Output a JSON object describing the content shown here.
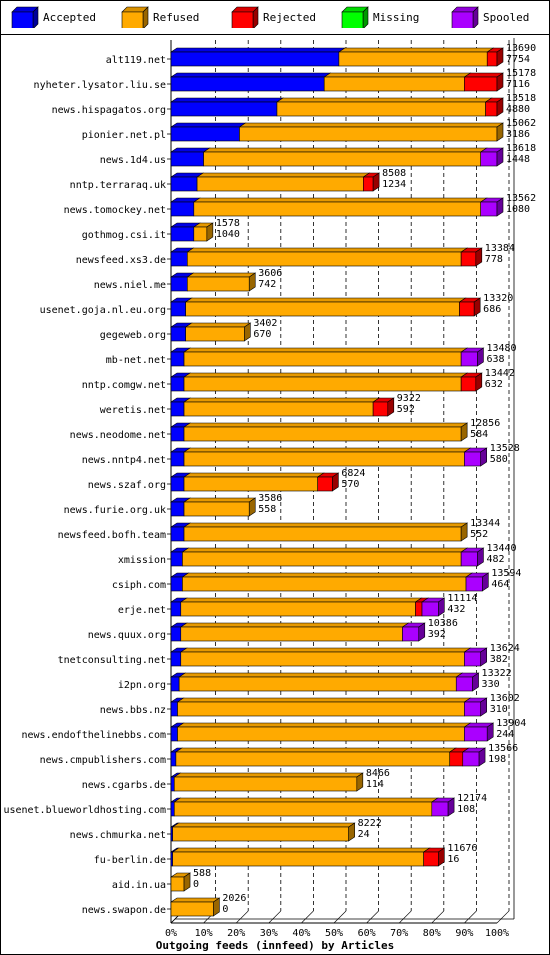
{
  "legend": [
    {
      "label": "Accepted",
      "color": "#0000ff"
    },
    {
      "label": "Refused",
      "color": "#ffaa00"
    },
    {
      "label": "Rejected",
      "color": "#ff0000"
    },
    {
      "label": "Missing",
      "color": "#00ff00"
    },
    {
      "label": "Spooled",
      "color": "#aa00ff"
    }
  ],
  "chart_data": {
    "type": "bar",
    "orientation": "horizontal",
    "stacked": true,
    "xlabel": "Outgoing feeds (innfeed) by Articles",
    "xlim": [
      0,
      100
    ],
    "x_ticks": [
      "0%",
      "10%",
      "20%",
      "30%",
      "40%",
      "50%",
      "60%",
      "70%",
      "80%",
      "90%",
      "100%"
    ],
    "grid": "vertical dashed",
    "legend_position": "top",
    "series_colors": {
      "Accepted": "#0000ff",
      "Refused": "#ffaa00",
      "Rejected": "#ff0000",
      "Missing": "#00ff00",
      "Spooled": "#aa00ff"
    },
    "rows": [
      {
        "name": "alt119.net",
        "total": "13690",
        "accepted": "7754",
        "pct": {
          "Accepted": 51.5,
          "Refused": 45.5,
          "Rejected": 3.0,
          "Missing": 0,
          "Spooled": 0
        }
      },
      {
        "name": "nyheter.lysator.liu.se",
        "total": "15178",
        "accepted": "7116",
        "pct": {
          "Accepted": 47.0,
          "Refused": 43.0,
          "Rejected": 10.0,
          "Missing": 0,
          "Spooled": 0
        }
      },
      {
        "name": "news.hispagatos.org",
        "total": "13518",
        "accepted": "4880",
        "pct": {
          "Accepted": 32.5,
          "Refused": 64.0,
          "Rejected": 3.5,
          "Missing": 0,
          "Spooled": 0
        }
      },
      {
        "name": "pionier.net.pl",
        "total": "15062",
        "accepted": "3186",
        "pct": {
          "Accepted": 21.0,
          "Refused": 79.0,
          "Rejected": 0,
          "Missing": 0,
          "Spooled": 0
        }
      },
      {
        "name": "news.1d4.us",
        "total": "13618",
        "accepted": "1448",
        "pct": {
          "Accepted": 10.0,
          "Refused": 85.0,
          "Rejected": 0,
          "Missing": 0,
          "Spooled": 5.0
        }
      },
      {
        "name": "nntp.terraraq.uk",
        "total": "8508",
        "accepted": "1234",
        "pct": {
          "Accepted": 8.0,
          "Refused": 51.0,
          "Rejected": 3.0,
          "Missing": 0,
          "Spooled": 0
        }
      },
      {
        "name": "news.tomockey.net",
        "total": "13562",
        "accepted": "1080",
        "pct": {
          "Accepted": 7.0,
          "Refused": 88.0,
          "Rejected": 0,
          "Missing": 0,
          "Spooled": 5.0
        }
      },
      {
        "name": "gothmog.csi.it",
        "total": "1578",
        "accepted": "1040",
        "pct": {
          "Accepted": 7.0,
          "Refused": 4.0,
          "Rejected": 0,
          "Missing": 0,
          "Spooled": 0
        }
      },
      {
        "name": "newsfeed.xs3.de",
        "total": "13384",
        "accepted": "778",
        "pct": {
          "Accepted": 5.0,
          "Refused": 84.0,
          "Rejected": 4.5,
          "Missing": 0,
          "Spooled": 0
        }
      },
      {
        "name": "news.niel.me",
        "total": "3606",
        "accepted": "742",
        "pct": {
          "Accepted": 5.0,
          "Refused": 19.0,
          "Rejected": 0,
          "Missing": 0,
          "Spooled": 0
        }
      },
      {
        "name": "usenet.goja.nl.eu.org",
        "total": "13320",
        "accepted": "686",
        "pct": {
          "Accepted": 4.5,
          "Refused": 84.0,
          "Rejected": 4.5,
          "Missing": 0,
          "Spooled": 0
        }
      },
      {
        "name": "gegeweb.org",
        "total": "3402",
        "accepted": "670",
        "pct": {
          "Accepted": 4.5,
          "Refused": 18.0,
          "Rejected": 0,
          "Missing": 0,
          "Spooled": 0
        }
      },
      {
        "name": "mb-net.net",
        "total": "13480",
        "accepted": "638",
        "pct": {
          "Accepted": 4.0,
          "Refused": 85.0,
          "Rejected": 0,
          "Missing": 0,
          "Spooled": 5.0
        }
      },
      {
        "name": "nntp.comgw.net",
        "total": "13442",
        "accepted": "632",
        "pct": {
          "Accepted": 4.0,
          "Refused": 85.0,
          "Rejected": 4.5,
          "Missing": 0,
          "Spooled": 0
        }
      },
      {
        "name": "weretis.net",
        "total": "9322",
        "accepted": "592",
        "pct": {
          "Accepted": 4.0,
          "Refused": 58.0,
          "Rejected": 4.5,
          "Missing": 0,
          "Spooled": 0
        }
      },
      {
        "name": "news.neodome.net",
        "total": "12856",
        "accepted": "584",
        "pct": {
          "Accepted": 4.0,
          "Refused": 85.0,
          "Rejected": 0,
          "Missing": 0,
          "Spooled": 0
        }
      },
      {
        "name": "news.nntp4.net",
        "total": "13528",
        "accepted": "580",
        "pct": {
          "Accepted": 4.0,
          "Refused": 86.0,
          "Rejected": 0,
          "Missing": 0,
          "Spooled": 5.0
        }
      },
      {
        "name": "news.szaf.org",
        "total": "6824",
        "accepted": "570",
        "pct": {
          "Accepted": 4.0,
          "Refused": 41.0,
          "Rejected": 4.5,
          "Missing": 0,
          "Spooled": 0
        }
      },
      {
        "name": "news.furie.org.uk",
        "total": "3586",
        "accepted": "558",
        "pct": {
          "Accepted": 4.0,
          "Refused": 20.0,
          "Rejected": 0,
          "Missing": 0,
          "Spooled": 0
        }
      },
      {
        "name": "newsfeed.bofh.team",
        "total": "13344",
        "accepted": "552",
        "pct": {
          "Accepted": 4.0,
          "Refused": 85.0,
          "Rejected": 0,
          "Missing": 0,
          "Spooled": 0
        }
      },
      {
        "name": "xmission",
        "total": "13440",
        "accepted": "482",
        "pct": {
          "Accepted": 3.5,
          "Refused": 85.5,
          "Rejected": 0,
          "Missing": 0,
          "Spooled": 5.0
        }
      },
      {
        "name": "csiph.com",
        "total": "13594",
        "accepted": "464",
        "pct": {
          "Accepted": 3.5,
          "Refused": 87.0,
          "Rejected": 0,
          "Missing": 0,
          "Spooled": 5.0
        }
      },
      {
        "name": "erje.net",
        "total": "11114",
        "accepted": "432",
        "pct": {
          "Accepted": 3.0,
          "Refused": 72.0,
          "Rejected": 2.0,
          "Missing": 0,
          "Spooled": 5.0
        }
      },
      {
        "name": "news.quux.org",
        "total": "10386",
        "accepted": "392",
        "pct": {
          "Accepted": 3.0,
          "Refused": 68.0,
          "Rejected": 0,
          "Missing": 0,
          "Spooled": 5.0
        }
      },
      {
        "name": "tnetconsulting.net",
        "total": "13624",
        "accepted": "382",
        "pct": {
          "Accepted": 3.0,
          "Refused": 87.0,
          "Rejected": 0,
          "Missing": 0,
          "Spooled": 5.0
        }
      },
      {
        "name": "i2pn.org",
        "total": "13322",
        "accepted": "330",
        "pct": {
          "Accepted": 2.5,
          "Refused": 85.0,
          "Rejected": 0,
          "Missing": 0,
          "Spooled": 5.0
        }
      },
      {
        "name": "news.bbs.nz",
        "total": "13602",
        "accepted": "310",
        "pct": {
          "Accepted": 2.0,
          "Refused": 88.0,
          "Rejected": 0,
          "Missing": 0,
          "Spooled": 5.0
        }
      },
      {
        "name": "news.endofthelinebbs.com",
        "total": "13904",
        "accepted": "244",
        "pct": {
          "Accepted": 2.0,
          "Refused": 88.0,
          "Rejected": 0,
          "Missing": 0,
          "Spooled": 7.0
        }
      },
      {
        "name": "news.cmpublishers.com",
        "total": "13566",
        "accepted": "198",
        "pct": {
          "Accepted": 1.5,
          "Refused": 84.0,
          "Rejected": 4.0,
          "Missing": 0,
          "Spooled": 5.0
        }
      },
      {
        "name": "news.cgarbs.de",
        "total": "8466",
        "accepted": "114",
        "pct": {
          "Accepted": 1.0,
          "Refused": 56.0,
          "Rejected": 0,
          "Missing": 0,
          "Spooled": 0
        }
      },
      {
        "name": "usenet.blueworldhosting.com",
        "total": "12174",
        "accepted": "108",
        "pct": {
          "Accepted": 1.0,
          "Refused": 79.0,
          "Rejected": 0,
          "Missing": 0,
          "Spooled": 5.0
        }
      },
      {
        "name": "news.chmurka.net",
        "total": "8222",
        "accepted": "24",
        "pct": {
          "Accepted": 0.5,
          "Refused": 54.0,
          "Rejected": 0,
          "Missing": 0,
          "Spooled": 0
        }
      },
      {
        "name": "fu-berlin.de",
        "total": "11676",
        "accepted": "16",
        "pct": {
          "Accepted": 0.5,
          "Refused": 77.0,
          "Rejected": 4.5,
          "Missing": 0,
          "Spooled": 0
        }
      },
      {
        "name": "aid.in.ua",
        "total": "588",
        "accepted": "0",
        "pct": {
          "Accepted": 0,
          "Refused": 4.0,
          "Rejected": 0,
          "Missing": 0,
          "Spooled": 0
        }
      },
      {
        "name": "news.swapon.de",
        "total": "2026",
        "accepted": "0",
        "pct": {
          "Accepted": 0,
          "Refused": 13.0,
          "Rejected": 0,
          "Missing": 0,
          "Spooled": 0
        }
      }
    ]
  }
}
